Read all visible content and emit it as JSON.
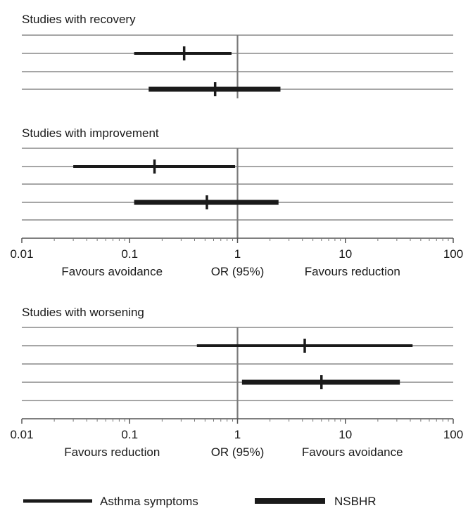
{
  "chart_data": {
    "type": "forest",
    "x_scale": "log",
    "xlim": [
      0.01,
      100
    ],
    "reference_line": 1,
    "tick_labels": [
      "0.01",
      "0.1",
      "1",
      "10",
      "100"
    ],
    "tick_values": [
      0.01,
      0.1,
      1,
      10,
      100
    ],
    "legend": {
      "placement": "bottom",
      "entries": [
        {
          "label": "Asthma symptoms",
          "style": "thin"
        },
        {
          "label": "NSBHR",
          "style": "thick"
        }
      ]
    },
    "panels": [
      {
        "title": "Studies with recovery",
        "rows": [
          {
            "series": "Asthma symptoms",
            "estimate": 0.32,
            "lower": 0.11,
            "upper": 0.88
          },
          {
            "series": "NSBHR",
            "estimate": 0.62,
            "lower": 0.15,
            "upper": 2.5
          }
        ]
      },
      {
        "title": "Studies with improvement",
        "rows": [
          {
            "series": "Asthma symptoms",
            "estimate": 0.17,
            "lower": 0.03,
            "upper": 0.95
          },
          {
            "series": "NSBHR",
            "estimate": 0.52,
            "lower": 0.11,
            "upper": 2.4
          }
        ],
        "axis": {
          "left_label": "Favours avoidance",
          "center_label": "OR (95%)",
          "right_label": "Favours reduction"
        }
      },
      {
        "title": "Studies with worsening",
        "rows": [
          {
            "series": "Asthma symptoms",
            "estimate": 4.2,
            "lower": 0.42,
            "upper": 42
          },
          {
            "series": "NSBHR",
            "estimate": 6.0,
            "lower": 1.1,
            "upper": 32
          }
        ],
        "axis": {
          "left_label": "Favours reduction",
          "center_label": "OR (95%)",
          "right_label": "Favours avoidance"
        }
      }
    ],
    "colors": {
      "grid": "#888888",
      "marks": "#1a1a1a",
      "reference": "#7a7a7a"
    }
  }
}
